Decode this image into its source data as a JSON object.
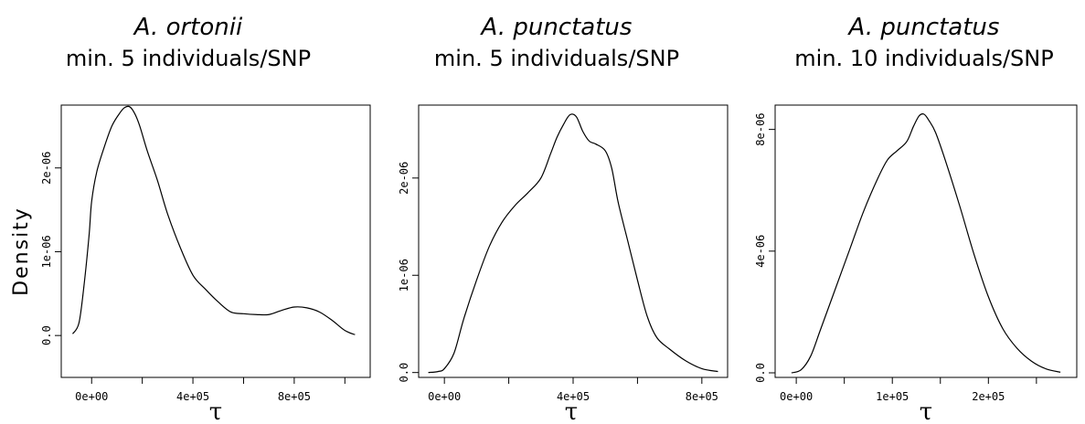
{
  "chart_data": [
    {
      "type": "line",
      "title": "A. ortonii",
      "subtitle": "min. 5 individuals/SNP",
      "xlabel": "τ",
      "ylabel": "Density",
      "xlim": [
        -120000,
        1100000
      ],
      "ylim": [
        -5e-07,
        2.75e-06
      ],
      "xticks": [
        0,
        200000,
        400000,
        600000,
        800000,
        1000000
      ],
      "xtick_labels": [
        "0e+00",
        "",
        "4e+05",
        "",
        "8e+05",
        ""
      ],
      "yticks": [
        0,
        1e-06,
        2e-06
      ],
      "ytick_labels": [
        "0.0",
        "1e-06",
        "2e-06"
      ],
      "series": [
        {
          "x": [
            -75000,
            -50000,
            -30000,
            -10000,
            0,
            20000,
            50000,
            80000,
            110000,
            130000,
            150000,
            170000,
            190000,
            220000,
            260000,
            300000,
            350000,
            400000,
            450000,
            500000,
            550000,
            600000,
            650000,
            700000,
            750000,
            800000,
            850000,
            900000,
            950000,
            1000000,
            1040000
          ],
          "y": [
            2e-08,
            1.5e-07,
            6e-07,
            1.2e-06,
            1.6e-06,
            1.95e-06,
            2.25e-06,
            2.5e-06,
            2.65e-06,
            2.72e-06,
            2.73e-06,
            2.65e-06,
            2.5e-06,
            2.2e-06,
            1.85e-06,
            1.45e-06,
            1.05e-06,
            7.2e-07,
            5.5e-07,
            4e-07,
            2.8e-07,
            2.6e-07,
            2.5e-07,
            2.5e-07,
            3e-07,
            3.4e-07,
            3.3e-07,
            2.8e-07,
            1.8e-07,
            6e-08,
            1e-08
          ]
        }
      ]
    },
    {
      "type": "line",
      "title": "A. punctatus",
      "subtitle": "min. 5 individuals/SNP",
      "xlabel": "τ",
      "ylabel": "",
      "xlim": [
        -80000,
        880000
      ],
      "ylim": [
        -5e-08,
        2.75e-06
      ],
      "xticks": [
        0,
        200000,
        400000,
        600000,
        800000
      ],
      "xtick_labels": [
        "0e+00",
        "",
        "4e+05",
        "",
        "8e+05"
      ],
      "yticks": [
        0,
        1e-06,
        2e-06
      ],
      "ytick_labels": [
        "0.0",
        "1e-06",
        "2e-06"
      ],
      "series": [
        {
          "x": [
            -50000,
            -20000,
            0,
            30000,
            60000,
            100000,
            140000,
            180000,
            220000,
            260000,
            300000,
            330000,
            350000,
            370000,
            390000,
            410000,
            430000,
            450000,
            470000,
            500000,
            520000,
            540000,
            570000,
            600000,
            630000,
            660000,
            700000,
            750000,
            800000,
            850000
          ],
          "y": [
            0.0,
            1e-08,
            4e-08,
            2e-07,
            5.5e-07,
            9.5e-07,
            1.3e-06,
            1.55e-06,
            1.72e-06,
            1.85e-06,
            2e-06,
            2.25e-06,
            2.42e-06,
            2.55e-06,
            2.65e-06,
            2.63e-06,
            2.48e-06,
            2.38e-06,
            2.35e-06,
            2.28e-06,
            2.1e-06,
            1.75e-06,
            1.35e-06,
            9.5e-07,
            5.8e-07,
            3.6e-07,
            2.4e-07,
            1.2e-07,
            4e-08,
            1e-08
          ]
        }
      ]
    },
    {
      "type": "line",
      "title": "A. punctatus",
      "subtitle": "min. 10 individuals/SNP",
      "xlabel": "τ",
      "ylabel": "",
      "xlim": [
        -22000,
        292000
      ],
      "ylim": [
        -1.5e-07,
        8.8e-06
      ],
      "xticks": [
        0,
        50000,
        100000,
        150000,
        200000,
        250000
      ],
      "xtick_labels": [
        "0e+00",
        "",
        "1e+05",
        "",
        "2e+05",
        ""
      ],
      "yticks": [
        0,
        4e-06,
        8e-06
      ],
      "ytick_labels": [
        "0.0",
        "4e-06",
        "8e-06"
      ],
      "series": [
        {
          "x": [
            -5000,
            5000,
            15000,
            25000,
            40000,
            55000,
            70000,
            85000,
            95000,
            105000,
            115000,
            122000,
            128000,
            133000,
            138000,
            145000,
            155000,
            170000,
            185000,
            200000,
            215000,
            230000,
            245000,
            260000,
            275000
          ],
          "y": [
            0.0,
            1e-07,
            5.5e-07,
            1.4e-06,
            2.7e-06,
            4e-06,
            5.3e-06,
            6.4e-06,
            7e-06,
            7.3e-06,
            7.6e-06,
            8.1e-06,
            8.45e-06,
            8.5e-06,
            8.3e-06,
            7.9e-06,
            7e-06,
            5.5e-06,
            3.9e-06,
            2.5e-06,
            1.45e-06,
            8e-07,
            3.8e-07,
            1.3e-07,
            2e-08
          ]
        }
      ]
    }
  ]
}
